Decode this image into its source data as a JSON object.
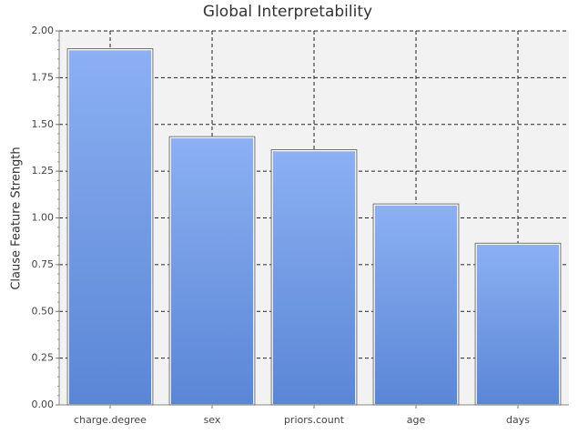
{
  "chart_data": {
    "type": "bar",
    "title": "Global Interpretability",
    "ylabel": "Clause Feature Strength",
    "categories": [
      "charge.degree",
      "sex",
      "priors.count",
      "age",
      "days"
    ],
    "values": [
      1.9,
      1.43,
      1.36,
      1.07,
      0.86
    ],
    "color": "#7aa2ea",
    "ylim": [
      0,
      2
    ],
    "yticks": [
      {
        "value": 0,
        "label": "0.00"
      },
      {
        "value": 0.25,
        "label": "0.25"
      },
      {
        "value": 0.5,
        "label": "0.50"
      },
      {
        "value": 0.75,
        "label": "0.75"
      },
      {
        "value": 1,
        "label": "1.00"
      },
      {
        "value": 1.25,
        "label": "1.25"
      },
      {
        "value": 1.5,
        "label": "1.50"
      },
      {
        "value": 1.75,
        "label": "1.75"
      },
      {
        "value": 2,
        "label": "2.00"
      }
    ],
    "grid": true
  }
}
